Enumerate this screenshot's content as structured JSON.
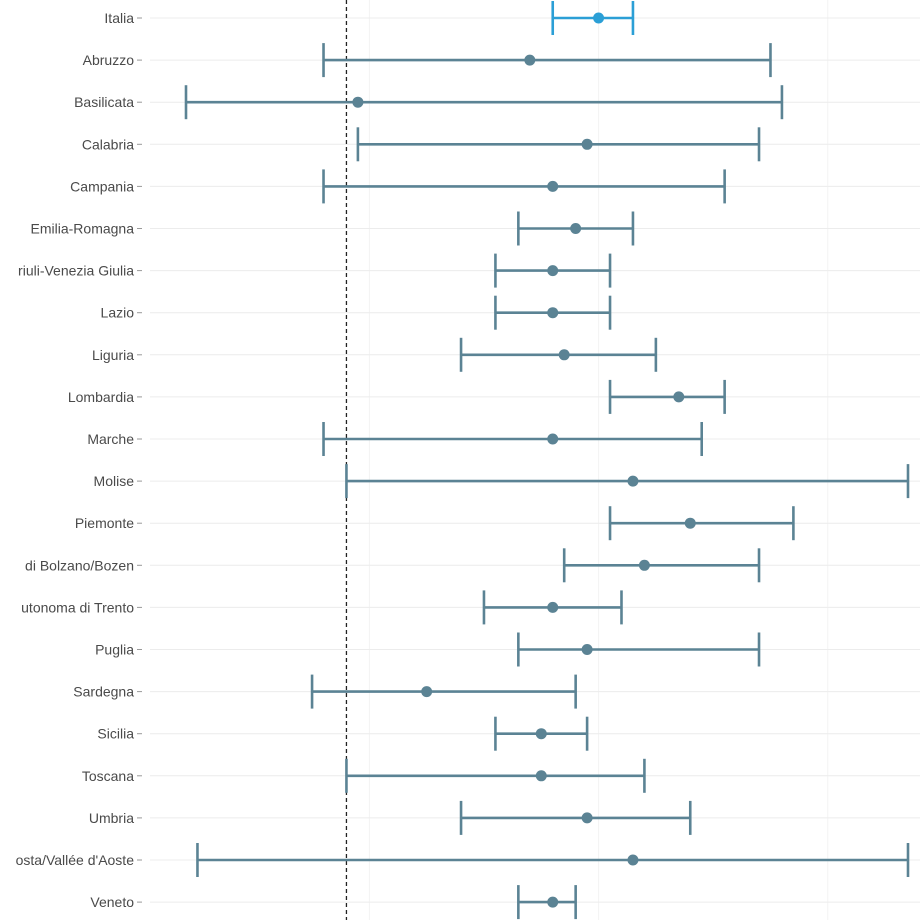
{
  "chart_data": {
    "type": "scatter",
    "subtype": "forest-plot",
    "xlim": [
      0.64,
      1.27
    ],
    "reference_x": 0.78,
    "grid": true,
    "colors": {
      "highlight": "#2b9fd6",
      "default": "#5b8394",
      "reference_line": "#222222"
    },
    "rows": [
      {
        "label": "Italia",
        "estimate": 1.0,
        "lower": 0.96,
        "upper": 1.03,
        "highlight": true
      },
      {
        "label": "Abruzzo",
        "estimate": 0.94,
        "lower": 0.76,
        "upper": 1.15
      },
      {
        "label": "Basilicata",
        "estimate": 0.79,
        "lower": 0.64,
        "upper": 1.16
      },
      {
        "label": "Calabria",
        "estimate": 0.99,
        "lower": 0.79,
        "upper": 1.14
      },
      {
        "label": "Campania",
        "estimate": 0.96,
        "lower": 0.76,
        "upper": 1.11
      },
      {
        "label": "Emilia-Romagna",
        "estimate": 0.98,
        "lower": 0.93,
        "upper": 1.03
      },
      {
        "label": "riuli-Venezia Giulia",
        "estimate": 0.96,
        "lower": 0.91,
        "upper": 1.01
      },
      {
        "label": "Lazio",
        "estimate": 0.96,
        "lower": 0.91,
        "upper": 1.01
      },
      {
        "label": "Liguria",
        "estimate": 0.97,
        "lower": 0.88,
        "upper": 1.05
      },
      {
        "label": "Lombardia",
        "estimate": 1.07,
        "lower": 1.01,
        "upper": 1.11
      },
      {
        "label": "Marche",
        "estimate": 0.96,
        "lower": 0.76,
        "upper": 1.09
      },
      {
        "label": "Molise",
        "estimate": 1.03,
        "lower": 0.78,
        "upper": 1.27
      },
      {
        "label": "Piemonte",
        "estimate": 1.08,
        "lower": 1.01,
        "upper": 1.17
      },
      {
        "label": "di Bolzano/Bozen",
        "estimate": 1.04,
        "lower": 0.97,
        "upper": 1.14
      },
      {
        "label": "utonoma di Trento",
        "estimate": 0.96,
        "lower": 0.9,
        "upper": 1.02
      },
      {
        "label": "Puglia",
        "estimate": 0.99,
        "lower": 0.93,
        "upper": 1.14
      },
      {
        "label": "Sardegna",
        "estimate": 0.85,
        "lower": 0.75,
        "upper": 0.98
      },
      {
        "label": "Sicilia",
        "estimate": 0.95,
        "lower": 0.91,
        "upper": 0.99
      },
      {
        "label": "Toscana",
        "estimate": 0.95,
        "lower": 0.78,
        "upper": 1.04
      },
      {
        "label": "Umbria",
        "estimate": 0.99,
        "lower": 0.88,
        "upper": 1.08
      },
      {
        "label": "osta/Vallée d'Aoste",
        "estimate": 1.03,
        "lower": 0.65,
        "upper": 1.27
      },
      {
        "label": "Veneto",
        "estimate": 0.96,
        "lower": 0.93,
        "upper": 0.98
      }
    ]
  }
}
